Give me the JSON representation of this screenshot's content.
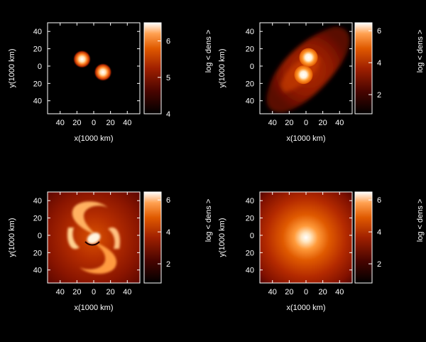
{
  "chart_data": [
    {
      "type": "heatmap",
      "panel": "top-left",
      "description_values": "two separated compact density blobs",
      "xlabel": "x(1000 km)",
      "ylabel": "y(1000 km)",
      "xlim": [
        -55,
        55
      ],
      "ylim": [
        -55,
        50
      ],
      "x_ticks": [
        "40",
        "20",
        "0",
        "20",
        "40"
      ],
      "y_ticks": [
        "40",
        "20",
        "0",
        "20",
        "40"
      ],
      "colorbar_label": "",
      "colorbar_range": [
        4,
        6.5
      ],
      "colorbar_ticks": [
        "4",
        "5",
        "6"
      ],
      "sources": [
        {
          "x": -14,
          "y": 8,
          "core": 6.5
        },
        {
          "x": 11,
          "y": -7,
          "core": 6.5
        }
      ]
    },
    {
      "type": "heatmap",
      "panel": "top-right",
      "description_values": "two touching stars inside a diffuse envelope",
      "xlabel": "x(1000 km)",
      "ylabel": "y(1000 km)",
      "xlim": [
        -55,
        55
      ],
      "ylim": [
        -55,
        50
      ],
      "x_ticks": [
        "40",
        "20",
        "0",
        "20",
        "40"
      ],
      "y_ticks": [
        "40",
        "20",
        "0",
        "20",
        "40"
      ],
      "colorbar_label": "log < dens >",
      "colorbar_range": [
        0.8,
        6.5
      ],
      "colorbar_ticks": [
        "2",
        "4",
        "6"
      ],
      "sources": [
        {
          "x": 3,
          "y": 10,
          "core": 6.4
        },
        {
          "x": -3,
          "y": -10,
          "core": 6.4
        }
      ]
    },
    {
      "type": "heatmap",
      "panel": "bottom-left",
      "description_values": "spiral merger remnant",
      "xlabel": "x(1000 km)",
      "ylabel": "y(1000 km)",
      "xlim": [
        -55,
        55
      ],
      "ylim": [
        -55,
        50
      ],
      "x_ticks": [
        "40",
        "20",
        "0",
        "20",
        "40"
      ],
      "y_ticks": [
        "40",
        "20",
        "0",
        "20",
        "40"
      ],
      "colorbar_label": "log < dens >",
      "colorbar_range": [
        0.8,
        6.5
      ],
      "colorbar_ticks": [
        "2",
        "4",
        "6"
      ]
    },
    {
      "type": "heatmap",
      "panel": "bottom-right",
      "description_values": "single centrally concentrated remnant",
      "xlabel": "x(1000 km)",
      "ylabel": "y(1000 km)",
      "xlim": [
        -55,
        55
      ],
      "ylim": [
        -55,
        50
      ],
      "x_ticks": [
        "40",
        "20",
        "0",
        "20",
        "40"
      ],
      "y_ticks": [
        "40",
        "20",
        "0",
        "20",
        "40"
      ],
      "colorbar_label": "log < dens >",
      "colorbar_range": [
        0.8,
        6.5
      ],
      "colorbar_ticks": [
        "2",
        "4",
        "6"
      ]
    }
  ],
  "labels": {
    "xlabel": "x(1000 km)",
    "ylabel": "y(1000 km)",
    "cbar": "log < dens >"
  },
  "colors": {
    "background": "#000000",
    "low": "#000000",
    "mid": "#8b1500",
    "high": "#e86a00",
    "peak": "#ffffff"
  }
}
